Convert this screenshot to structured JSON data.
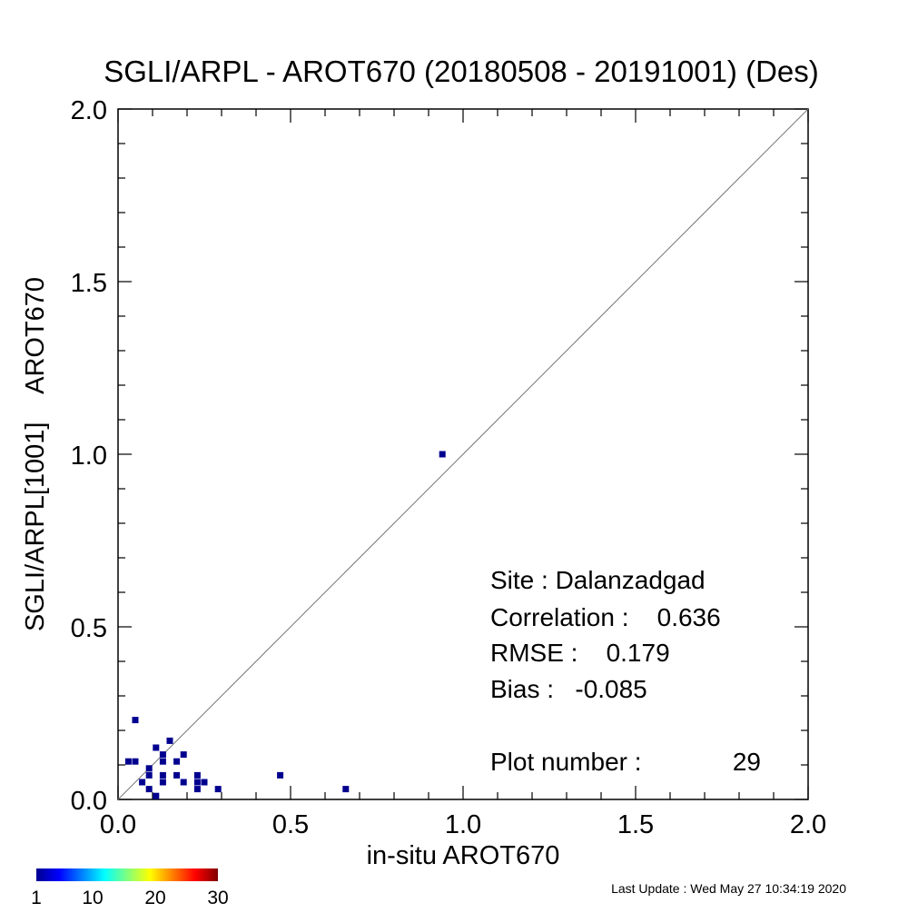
{
  "chart_data": {
    "type": "scatter",
    "title": "SGLI/ARPL - AROT670 (20180508 - 20191001) (Des)",
    "xlabel": "in-situ AROT670",
    "ylabel": "SGLI/ARPL[1001]    AROT670",
    "xlim": [
      0.0,
      2.0
    ],
    "ylim": [
      0.0,
      2.0
    ],
    "x_tick_labels": [
      "0.0",
      "0.5",
      "1.0",
      "1.5",
      "2.0"
    ],
    "y_tick_labels": [
      "0.0",
      "0.5",
      "1.0",
      "1.5",
      "2.0"
    ],
    "reference_line": "1:1",
    "grid": false,
    "marker_color": "#00008f",
    "points": [
      {
        "x": 0.94,
        "y": 1.0
      },
      {
        "x": 0.05,
        "y": 0.23
      },
      {
        "x": 0.03,
        "y": 0.11
      },
      {
        "x": 0.05,
        "y": 0.11
      },
      {
        "x": 0.11,
        "y": 0.15
      },
      {
        "x": 0.15,
        "y": 0.17
      },
      {
        "x": 0.13,
        "y": 0.13
      },
      {
        "x": 0.13,
        "y": 0.11
      },
      {
        "x": 0.19,
        "y": 0.13
      },
      {
        "x": 0.17,
        "y": 0.11
      },
      {
        "x": 0.09,
        "y": 0.09
      },
      {
        "x": 0.09,
        "y": 0.07
      },
      {
        "x": 0.13,
        "y": 0.07
      },
      {
        "x": 0.17,
        "y": 0.07
      },
      {
        "x": 0.07,
        "y": 0.05
      },
      {
        "x": 0.13,
        "y": 0.05
      },
      {
        "x": 0.19,
        "y": 0.05
      },
      {
        "x": 0.23,
        "y": 0.07
      },
      {
        "x": 0.23,
        "y": 0.05
      },
      {
        "x": 0.25,
        "y": 0.05
      },
      {
        "x": 0.09,
        "y": 0.03
      },
      {
        "x": 0.23,
        "y": 0.03
      },
      {
        "x": 0.29,
        "y": 0.03
      },
      {
        "x": 0.11,
        "y": 0.01
      },
      {
        "x": 0.47,
        "y": 0.07
      },
      {
        "x": 0.66,
        "y": 0.03
      }
    ],
    "stats": {
      "site": "Site : Dalanzadgad",
      "correlation": "Correlation :    0.636",
      "rmse": "RMSE :    0.179",
      "bias": "Bias :   -0.085",
      "plot_number_label": "Plot number :",
      "plot_number_value": "29"
    },
    "colorbar": {
      "tick_labels": [
        "1",
        "10",
        "20",
        "30"
      ],
      "range": [
        1,
        30
      ],
      "colormap": "jet"
    }
  },
  "footer": {
    "last_update": "Last Update : Wed May 27 10:34:19 2020"
  }
}
